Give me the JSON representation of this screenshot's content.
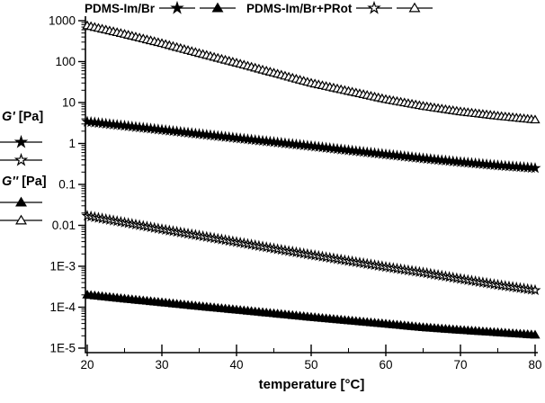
{
  "window": {
    "background": "#ffffff",
    "foreground": "#000000"
  },
  "legend_top": {
    "group1": "PDMS-Im/Br",
    "group1_symbols": [
      "star-filled",
      "triangle-filled"
    ],
    "group2": "PDMS-Im/Br+PRot",
    "group2_symbols": [
      "star-open",
      "triangle-open"
    ]
  },
  "legend_left": {
    "gprime": "G'",
    "gsecond": "G''",
    "unit": "[Pa]",
    "gprime_symbols": [
      "star-filled",
      "star-open"
    ],
    "gsecond_symbols": [
      "triangle-filled",
      "triangle-open"
    ]
  },
  "chart_data": {
    "type": "line",
    "title": "",
    "xlabel": "temperature [°C]",
    "x_axis": {
      "min": 20,
      "max": 80,
      "ticks": [
        20,
        30,
        40,
        50,
        60,
        70,
        80
      ],
      "minor_ticks": [
        25,
        35,
        45,
        55,
        65,
        75
      ]
    },
    "y_axis": {
      "scale": "log",
      "min": 1e-05,
      "max": 1000,
      "tick_labels": [
        "1000",
        "100",
        "10",
        "1",
        "0.1",
        "0.01",
        "1E-3",
        "1E-4",
        "1E-5"
      ],
      "tick_values": [
        1000,
        100,
        10,
        1,
        0.1,
        0.01,
        0.001,
        0.0001,
        1e-05
      ]
    },
    "x": [
      20,
      25,
      30,
      35,
      40,
      45,
      50,
      55,
      60,
      65,
      70,
      75,
      80
    ],
    "series": [
      {
        "label": "PDMS-Im/Br+PRot G''",
        "marker": "triangle-open",
        "values": [
          760,
          470,
          280,
          160,
          93,
          53,
          30,
          19,
          12,
          8.2,
          6.0,
          4.7,
          3.8
        ]
      },
      {
        "label": "PDMS-Im/Br G'",
        "marker": "star-filled",
        "values": [
          3.4,
          2.7,
          2.15,
          1.7,
          1.35,
          1.08,
          0.86,
          0.68,
          0.54,
          0.43,
          0.35,
          0.29,
          0.25
        ]
      },
      {
        "label": "PDMS-Im/Br+PRot G'",
        "marker": "star-open",
        "values": [
          0.017,
          0.0117,
          0.008,
          0.0056,
          0.0039,
          0.0027,
          0.0019,
          0.00135,
          0.00096,
          0.0007,
          0.00049,
          0.00035,
          0.00026
        ]
      },
      {
        "label": "PDMS-Im/Br G''",
        "marker": "triangle-filled",
        "values": [
          0.0002,
          0.00016,
          0.00013,
          0.000105,
          8.6e-05,
          7e-05,
          5.7e-05,
          4.7e-05,
          3.9e-05,
          3.2e-05,
          2.75e-05,
          2.4e-05,
          2.1e-05
        ]
      }
    ],
    "legend_position": "top",
    "grid": false
  }
}
